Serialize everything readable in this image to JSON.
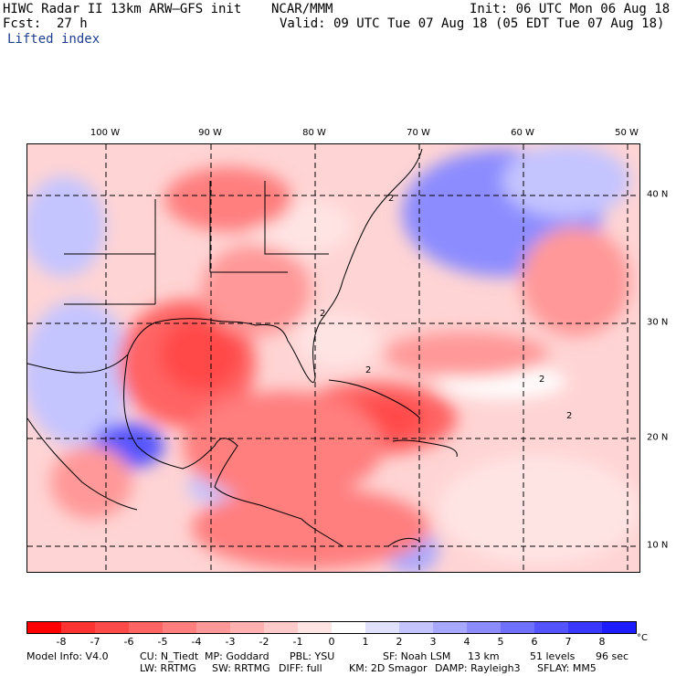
{
  "header": {
    "title": "HIWC Radar II 13km ARW–GFS init",
    "org": "NCAR/MMM",
    "init": "Init: 06 UTC Mon 06 Aug 18",
    "fcst": "Fcst:  27 h",
    "valid": "Valid: 09 UTC Tue 07 Aug 18 (05 EDT Tue 07 Aug 18)",
    "field": "Lifted index"
  },
  "map": {
    "lon_labels": [
      "100 W",
      "90 W",
      "80 W",
      "70 W",
      "60 W",
      "50 W"
    ],
    "lat_labels": [
      "40 N",
      "30 N",
      "20 N",
      "10 N"
    ],
    "contour_labels": [
      "2",
      "2",
      "2",
      "2",
      "2"
    ]
  },
  "colorbar": {
    "colors": [
      "#ff0000",
      "#ff3232",
      "#ff4a4a",
      "#ff6464",
      "#ff7e7e",
      "#ff9898",
      "#ffb0b0",
      "#ffcaca",
      "#ffe4e4",
      "#ffffff",
      "#e0e0ff",
      "#c4c4ff",
      "#a8a8ff",
      "#8c8cff",
      "#7070ff",
      "#5454ff",
      "#3838ff",
      "#1c1cff"
    ],
    "ticks": [
      "-8",
      "-7",
      "-6",
      "-5",
      "-4",
      "-3",
      "-2",
      "-1",
      "0",
      "1",
      "2",
      "3",
      "4",
      "5",
      "6",
      "7",
      "8"
    ],
    "unit": "°C"
  },
  "footer": {
    "line1": [
      "Model Info: V4.0",
      "CU: N_Tiedt",
      "MP: Goddard",
      "PBL: YSU",
      "SF: Noah LSM",
      "13 km",
      "51 levels",
      "96 sec"
    ],
    "line2": [
      "LW: RRTMG",
      "SW: RRTMG",
      "DIFF: full",
      "KM: 2D Smagor",
      "DAMP: Rayleigh3",
      "SFLAY: MM5"
    ]
  }
}
